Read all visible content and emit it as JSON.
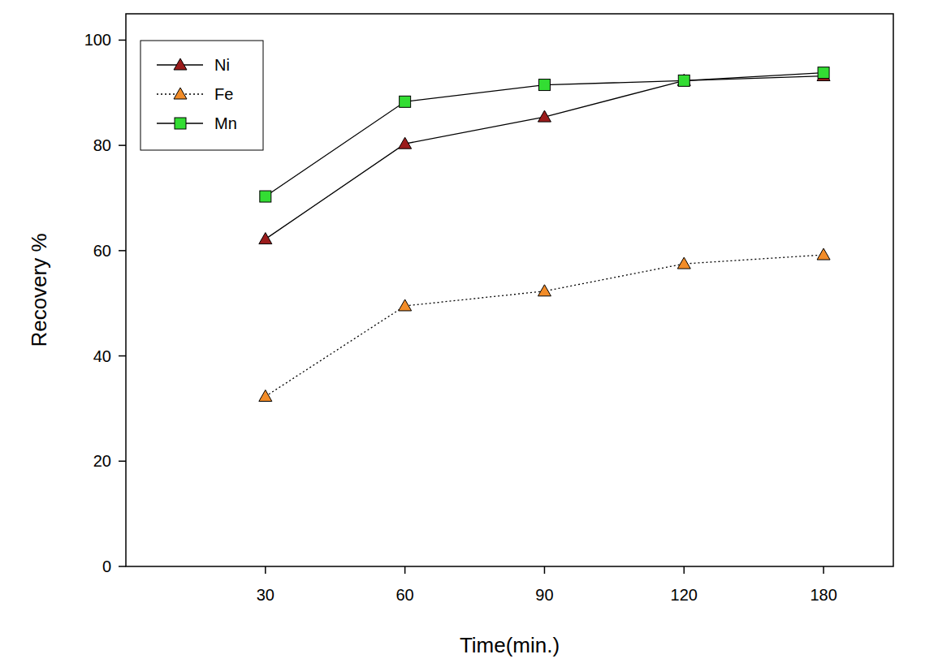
{
  "chart_data": {
    "type": "line",
    "x_label": "Time(min.)",
    "y_label": "Recovery %",
    "categories": [
      "30",
      "60",
      "90",
      "120",
      "180"
    ],
    "series": [
      {
        "name": "Ni",
        "color": "#9b1c1c",
        "marker": "triangle",
        "line_style": "solid",
        "values": [
          62.2,
          80.3,
          85.4,
          92.3,
          93.2
        ]
      },
      {
        "name": "Fe",
        "color": "#f28c28",
        "marker": "triangle",
        "line_style": "dotted",
        "values": [
          32.3,
          49.5,
          52.3,
          57.5,
          59.2
        ]
      },
      {
        "name": "Mn",
        "color": "#33dd33",
        "marker": "square",
        "line_style": "solid",
        "values": [
          70.3,
          88.3,
          91.5,
          92.3,
          93.8
        ]
      }
    ],
    "ylim": [
      0,
      105
    ],
    "yticks": [
      0,
      20,
      40,
      60,
      80,
      100
    ],
    "grid": false,
    "legend": "upper left"
  }
}
